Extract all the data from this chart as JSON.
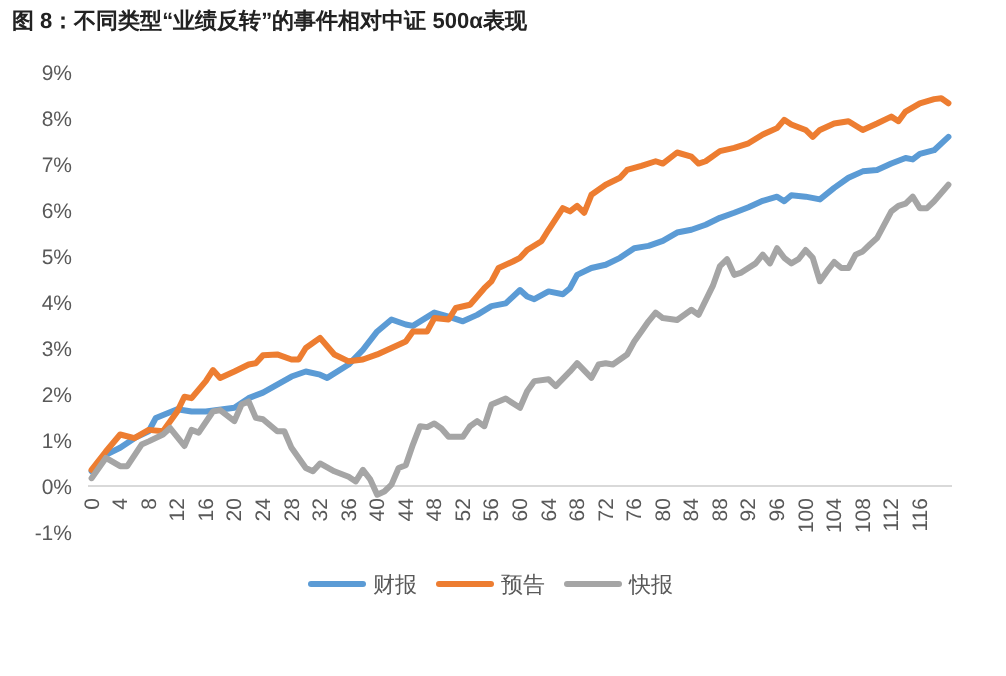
{
  "chart_data": {
    "type": "line",
    "title": "图 8：不同类型“业绩反转”的事件相对中证 500α表现",
    "xlim": [
      -0.5,
      120.5
    ],
    "xticks": [
      0,
      4,
      8,
      12,
      16,
      20,
      24,
      28,
      32,
      36,
      40,
      44,
      48,
      52,
      56,
      60,
      64,
      68,
      72,
      76,
      80,
      84,
      88,
      92,
      96,
      100,
      104,
      108,
      112,
      116
    ],
    "ylim": [
      -1,
      9
    ],
    "yticks": [
      {
        "value": -1,
        "label": "-1%"
      },
      {
        "value": 0,
        "label": "0%"
      },
      {
        "value": 1,
        "label": "1%"
      },
      {
        "value": 2,
        "label": "2%"
      },
      {
        "value": 3,
        "label": "3%"
      },
      {
        "value": 4,
        "label": "4%"
      },
      {
        "value": 5,
        "label": "5%"
      },
      {
        "value": 6,
        "label": "6%"
      },
      {
        "value": 7,
        "label": "7%"
      },
      {
        "value": 8,
        "label": "8%"
      },
      {
        "value": 9,
        "label": "9%"
      }
    ],
    "grid": false,
    "legend": "bottom",
    "marker": "none",
    "line_style": "solid",
    "series": [
      {
        "name": "财报",
        "color": "#5b9bd5",
        "x": [
          0,
          2,
          4,
          6,
          8,
          9,
          12,
          14,
          16,
          20,
          22,
          24,
          28,
          30,
          32,
          33,
          36,
          38,
          40,
          42,
          44,
          45,
          48,
          50,
          52,
          54,
          56,
          58,
          60,
          61,
          62,
          64,
          66,
          67,
          68,
          70,
          72,
          74,
          76,
          78,
          80,
          82,
          84,
          86,
          88,
          90,
          92,
          94,
          96,
          97,
          98,
          100,
          102,
          104,
          106,
          108,
          110,
          112,
          114,
          115,
          116,
          118,
          120
        ],
        "values": [
          0.32,
          0.68,
          0.83,
          1.04,
          1.19,
          1.48,
          1.67,
          1.62,
          1.62,
          1.7,
          1.91,
          2.03,
          2.38,
          2.49,
          2.42,
          2.35,
          2.64,
          2.96,
          3.36,
          3.62,
          3.51,
          3.48,
          3.77,
          3.68,
          3.58,
          3.72,
          3.91,
          3.97,
          4.26,
          4.12,
          4.06,
          4.23,
          4.17,
          4.3,
          4.59,
          4.74,
          4.81,
          4.96,
          5.17,
          5.22,
          5.33,
          5.51,
          5.57,
          5.68,
          5.83,
          5.94,
          6.06,
          6.2,
          6.29,
          6.19,
          6.32,
          6.29,
          6.23,
          6.48,
          6.7,
          6.84,
          6.87,
          7.01,
          7.13,
          7.1,
          7.22,
          7.3,
          7.59
        ]
      },
      {
        "name": "预告",
        "color": "#ed7d31",
        "x": [
          0,
          2,
          4,
          6,
          8,
          10,
          12,
          13,
          14,
          16,
          17,
          18,
          20,
          22,
          23,
          24,
          26,
          28,
          29,
          30,
          32,
          34,
          36,
          38,
          40,
          42,
          44,
          45,
          47,
          48,
          50,
          51,
          53,
          55,
          56,
          57,
          59,
          60,
          61,
          63,
          64,
          66,
          67,
          68,
          69,
          70,
          72,
          74,
          75,
          77,
          79,
          80,
          82,
          84,
          85,
          86,
          88,
          90,
          92,
          94,
          96,
          97,
          98,
          100,
          101,
          102,
          104,
          106,
          108,
          110,
          112,
          113,
          114,
          116,
          118,
          119,
          120
        ],
        "values": [
          0.35,
          0.75,
          1.12,
          1.04,
          1.22,
          1.19,
          1.62,
          1.94,
          1.91,
          2.28,
          2.52,
          2.35,
          2.49,
          2.64,
          2.67,
          2.84,
          2.86,
          2.75,
          2.75,
          3.0,
          3.22,
          2.86,
          2.71,
          2.75,
          2.86,
          3.0,
          3.14,
          3.36,
          3.36,
          3.65,
          3.62,
          3.87,
          3.94,
          4.3,
          4.45,
          4.74,
          4.88,
          4.96,
          5.13,
          5.32,
          5.57,
          6.04,
          5.97,
          6.09,
          5.94,
          6.33,
          6.55,
          6.7,
          6.87,
          6.96,
          7.06,
          7.01,
          7.25,
          7.16,
          7.01,
          7.06,
          7.28,
          7.35,
          7.45,
          7.64,
          7.78,
          7.96,
          7.86,
          7.74,
          7.59,
          7.74,
          7.88,
          7.93,
          7.74,
          7.88,
          8.03,
          7.93,
          8.14,
          8.32,
          8.41,
          8.43,
          8.32
        ]
      },
      {
        "name": "快报",
        "color": "#a5a5a5",
        "x": [
          0,
          2,
          4,
          5,
          7,
          8,
          10,
          11,
          13,
          14,
          15,
          17,
          18,
          20,
          21,
          22,
          23,
          24,
          26,
          27,
          28,
          30,
          31,
          32,
          34,
          36,
          37,
          38,
          39,
          40,
          41,
          42,
          43,
          44,
          45,
          46,
          47,
          48,
          49,
          50,
          52,
          53,
          54,
          55,
          56,
          58,
          60,
          61,
          62,
          64,
          65,
          67,
          68,
          70,
          71,
          72,
          73,
          75,
          76,
          77,
          78,
          79,
          80,
          82,
          84,
          85,
          87,
          88,
          89,
          90,
          91,
          93,
          94,
          95,
          96,
          97,
          98,
          99,
          100,
          101,
          102,
          103,
          104,
          105,
          106,
          107,
          108,
          109,
          110,
          112,
          113,
          114,
          115,
          116,
          117,
          118,
          120
        ],
        "values": [
          0.17,
          0.61,
          0.43,
          0.43,
          0.9,
          0.97,
          1.12,
          1.26,
          0.87,
          1.22,
          1.16,
          1.62,
          1.65,
          1.41,
          1.77,
          1.84,
          1.48,
          1.45,
          1.19,
          1.19,
          0.83,
          0.39,
          0.32,
          0.49,
          0.32,
          0.2,
          0.1,
          0.35,
          0.15,
          -0.19,
          -0.12,
          0.03,
          0.39,
          0.45,
          0.9,
          1.3,
          1.28,
          1.36,
          1.25,
          1.07,
          1.07,
          1.3,
          1.41,
          1.3,
          1.77,
          1.9,
          1.7,
          2.06,
          2.28,
          2.32,
          2.17,
          2.49,
          2.67,
          2.35,
          2.64,
          2.67,
          2.64,
          2.86,
          3.14,
          3.36,
          3.58,
          3.77,
          3.65,
          3.61,
          3.83,
          3.72,
          4.35,
          4.78,
          4.93,
          4.59,
          4.64,
          4.84,
          5.03,
          4.84,
          5.17,
          4.96,
          4.84,
          4.93,
          5.13,
          4.96,
          4.45,
          4.67,
          4.87,
          4.74,
          4.74,
          5.03,
          5.1,
          5.25,
          5.39,
          5.97,
          6.09,
          6.14,
          6.29,
          6.04,
          6.04,
          6.19,
          6.55
        ]
      }
    ]
  }
}
